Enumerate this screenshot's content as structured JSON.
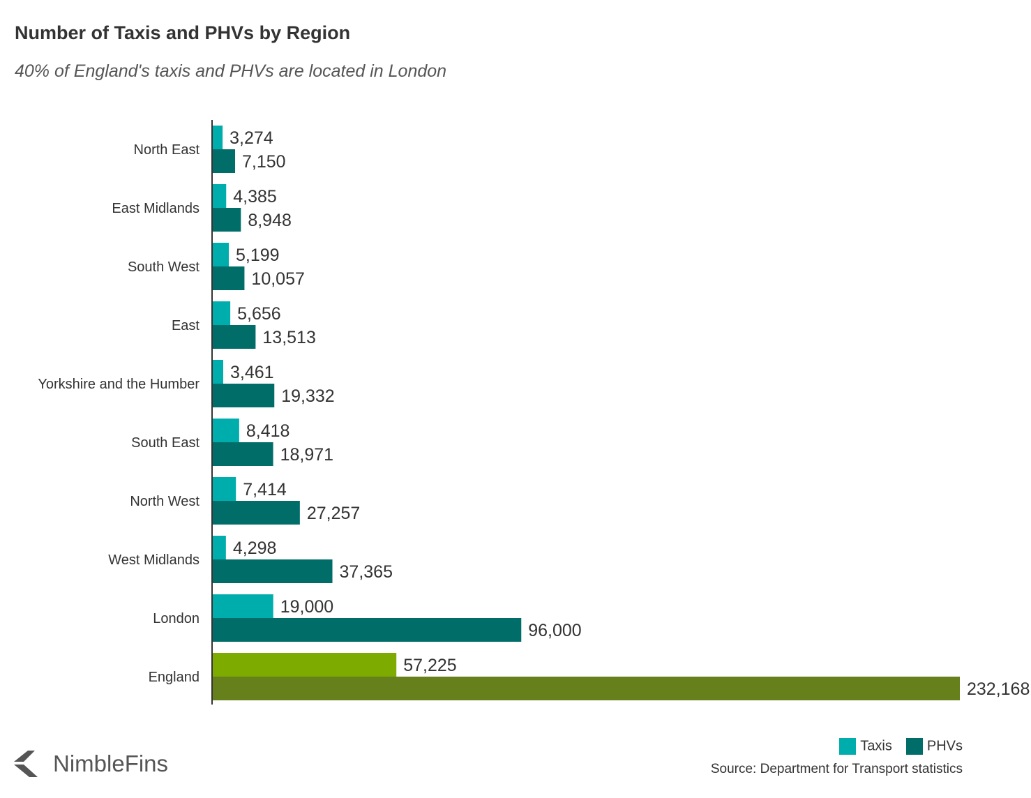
{
  "chart_data": {
    "type": "bar",
    "orientation": "horizontal",
    "title": "Number of Taxis and PHVs by Region",
    "subtitle": "40% of England's taxis and PHVs are located in London",
    "categories": [
      "North East",
      "East Midlands",
      "South West",
      "East",
      "Yorkshire and the Humber",
      "South East",
      "North West",
      "West Midlands",
      "London",
      "England"
    ],
    "series": [
      {
        "name": "Taxis",
        "color": "#00adad",
        "highlight_color": "#7dab00",
        "values": [
          3274,
          4385,
          5199,
          5656,
          3461,
          8418,
          7414,
          4298,
          19000,
          57225
        ],
        "labels": [
          "3,274",
          "4,385",
          "5,199",
          "5,656",
          "3,461",
          "8,418",
          "7,414",
          "4,298",
          "19,000",
          "57,225"
        ]
      },
      {
        "name": "PHVs",
        "color": "#006d68",
        "highlight_color": "#66801b",
        "values": [
          7150,
          8948,
          10057,
          13513,
          19332,
          18971,
          27257,
          37365,
          96000,
          232168
        ],
        "labels": [
          "7,150",
          "8,948",
          "10,057",
          "13,513",
          "19,332",
          "18,971",
          "27,257",
          "37,365",
          "96,000",
          "232,168"
        ]
      }
    ],
    "highlighted_category": "England",
    "xlim": [
      0,
      232168
    ],
    "grid": false,
    "legend_placement": "bottom-right"
  },
  "source": "Source: Department for Transport statistics",
  "logo": "NimbleFins"
}
